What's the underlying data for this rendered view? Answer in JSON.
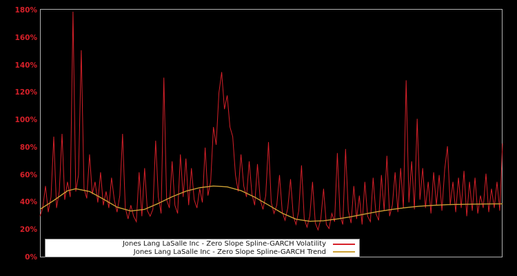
{
  "chart_data": {
    "type": "line",
    "title": "",
    "background": "#000000",
    "frame_color": "#b3b3b3",
    "grid": false,
    "x_axis": {
      "labels_visible": false,
      "ticks": []
    },
    "y_axis": {
      "min": 0,
      "max": 180,
      "unit": "%",
      "tick_color": "#d62029",
      "ticks": [
        {
          "label": "0%",
          "value": 0
        },
        {
          "label": "20%",
          "value": 20
        },
        {
          "label": "40%",
          "value": 40
        },
        {
          "label": "60%",
          "value": 60
        },
        {
          "label": "80%",
          "value": 80
        },
        {
          "label": "100%",
          "value": 100
        },
        {
          "label": "120%",
          "value": 120
        },
        {
          "label": "140%",
          "value": 140
        },
        {
          "label": "160%",
          "value": 160
        },
        {
          "label": "180%",
          "value": 180
        }
      ]
    },
    "legend": {
      "position": "bottom-left-inside",
      "background": "#ffffff"
    },
    "series": [
      {
        "name": "Jones Lang LaSalle Inc - Zero Slope Spline-GARCH Volatility",
        "color": "#d62029",
        "style": "noisy-line",
        "values": [
          30,
          36,
          52,
          33,
          44,
          88,
          36,
          48,
          90,
          42,
          55,
          44,
          179,
          48,
          60,
          151,
          50,
          43,
          75,
          46,
          55,
          40,
          62,
          38,
          48,
          36,
          58,
          42,
          33,
          45,
          90,
          36,
          28,
          38,
          30,
          26,
          62,
          30,
          65,
          34,
          30,
          35,
          85,
          44,
          32,
          131,
          42,
          36,
          70,
          38,
          32,
          75,
          44,
          72,
          38,
          65,
          42,
          36,
          50,
          40,
          80,
          45,
          55,
          95,
          82,
          120,
          135,
          108,
          118,
          95,
          88,
          60,
          48,
          75,
          52,
          44,
          70,
          46,
          38,
          68,
          42,
          35,
          45,
          84,
          40,
          32,
          38,
          60,
          33,
          27,
          36,
          57,
          30,
          24,
          34,
          67,
          28,
          22,
          30,
          55,
          25,
          20,
          28,
          50,
          24,
          21,
          32,
          26,
          76,
          30,
          24,
          79,
          34,
          25,
          52,
          28,
          45,
          24,
          55,
          30,
          26,
          58,
          32,
          27,
          60,
          34,
          74,
          30,
          38,
          62,
          33,
          65,
          36,
          129,
          40,
          70,
          35,
          101,
          42,
          65,
          36,
          55,
          32,
          62,
          38,
          60,
          34,
          64,
          81,
          38,
          55,
          33,
          58,
          36,
          63,
          30,
          55,
          34,
          58,
          32,
          45,
          36,
          61,
          33,
          50,
          36,
          55,
          34,
          83
        ]
      },
      {
        "name": "Jones Lang LaSalle Inc - Zero Slope Spline-GARCH Trend",
        "color": "#cda035",
        "style": "smooth-line",
        "points": [
          [
            0,
            35
          ],
          [
            5,
            41.5
          ],
          [
            10,
            48.5
          ],
          [
            13,
            50
          ],
          [
            18,
            48
          ],
          [
            23,
            42.5
          ],
          [
            28,
            36.6
          ],
          [
            33,
            33.8
          ],
          [
            38,
            35
          ],
          [
            43,
            39.3
          ],
          [
            48,
            44.2
          ],
          [
            53,
            48.2
          ],
          [
            58,
            50.8
          ],
          [
            63,
            52
          ],
          [
            68,
            51.4
          ],
          [
            73,
            48.6
          ],
          [
            78,
            43.9
          ],
          [
            83,
            38.1
          ],
          [
            88,
            32.2
          ],
          [
            93,
            27.8
          ],
          [
            98,
            26.3
          ],
          [
            103,
            26.7
          ],
          [
            108,
            28
          ],
          [
            113,
            29.6
          ],
          [
            118,
            31.6
          ],
          [
            123,
            33.5
          ],
          [
            128,
            35
          ],
          [
            133,
            36.3
          ],
          [
            138,
            37.3
          ],
          [
            143,
            37.9
          ],
          [
            148,
            38.4
          ],
          [
            153,
            38.6
          ],
          [
            158,
            38.8
          ],
          [
            163,
            38.9
          ],
          [
            168,
            39
          ]
        ]
      }
    ]
  }
}
